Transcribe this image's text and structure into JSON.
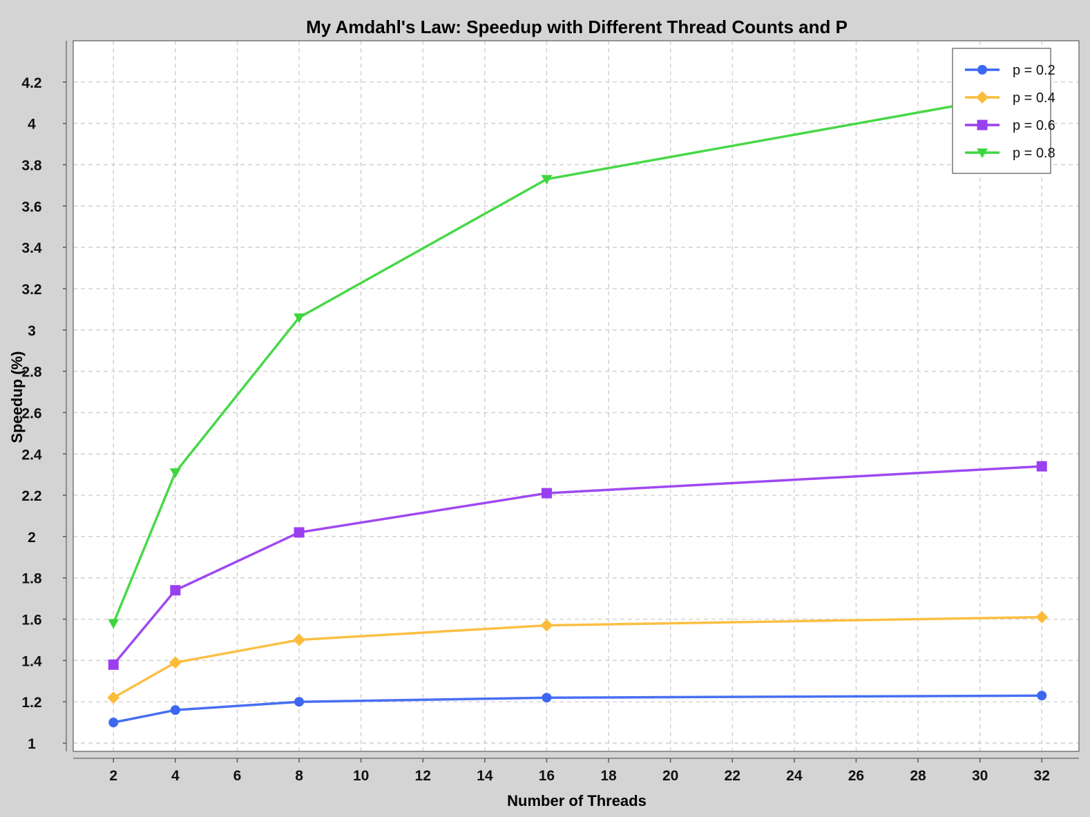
{
  "chart_data": {
    "type": "line",
    "title": "My Amdahl's Law: Speedup with Different Thread Counts and P",
    "xlabel": "Number of Threads",
    "ylabel": "Speedup (%)",
    "xlim": [
      0.7,
      33.2
    ],
    "ylim": [
      0.96,
      4.4
    ],
    "x_ticks": [
      2,
      4,
      6,
      8,
      10,
      12,
      14,
      16,
      18,
      20,
      22,
      24,
      26,
      28,
      30,
      32
    ],
    "y_ticks": [
      1,
      1.2,
      1.4,
      1.6,
      1.8,
      2,
      2.2,
      2.4,
      2.6,
      2.8,
      3,
      3.2,
      3.4,
      3.6,
      3.8,
      4,
      4.2
    ],
    "grid": true,
    "legend_position": "top-right",
    "x": [
      2,
      4,
      8,
      16,
      32
    ],
    "series": [
      {
        "name": "p = 0.2",
        "color": "#3d67f0",
        "marker": "circle",
        "values": [
          1.1,
          1.16,
          1.2,
          1.22,
          1.23
        ]
      },
      {
        "name": "p = 0.4",
        "color": "#fbbc3a",
        "marker": "diamond",
        "values": [
          1.22,
          1.39,
          1.5,
          1.57,
          1.61
        ]
      },
      {
        "name": "p = 0.6",
        "color": "#9a3ff0",
        "marker": "square",
        "values": [
          1.38,
          1.74,
          2.02,
          2.21,
          2.34
        ]
      },
      {
        "name": "p = 0.8",
        "color": "#3ed63e",
        "marker": "triangle-down",
        "values": [
          1.58,
          2.31,
          3.06,
          3.73,
          4.16
        ]
      }
    ]
  }
}
